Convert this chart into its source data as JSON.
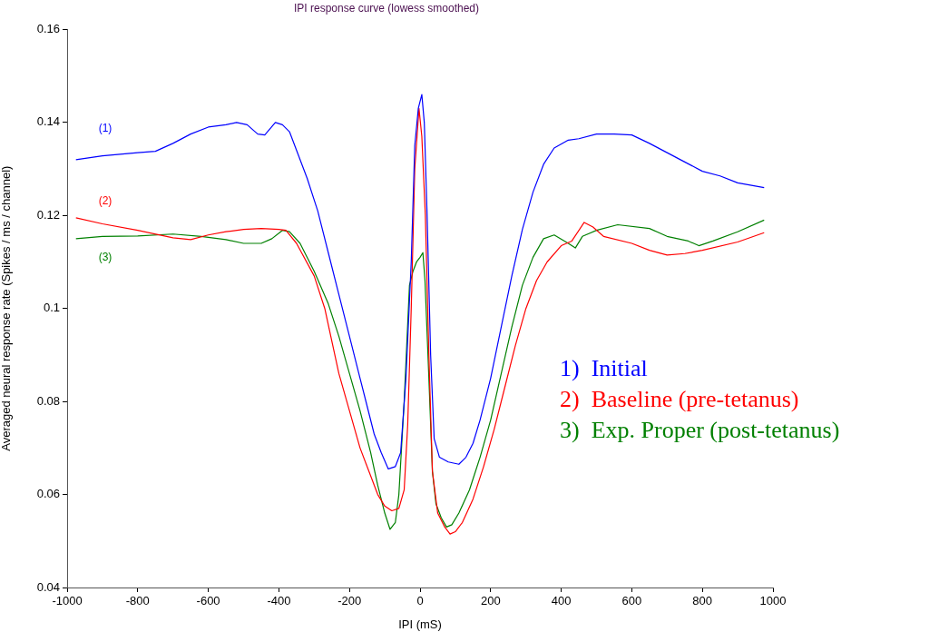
{
  "chart_data": {
    "type": "line",
    "title": "IPI response curve (lowess smoothed)",
    "xlabel": "IPI (mS)",
    "ylabel": "Averaged neural response rate (Spikes / ms / channel)",
    "xlim": [
      -1000,
      1000
    ],
    "xticks": [
      -1000,
      -800,
      -600,
      -400,
      -200,
      0,
      200,
      400,
      600,
      800,
      1000
    ],
    "ylim": [
      0.04,
      0.16
    ],
    "yticks": [
      0.04,
      0.06,
      0.08,
      0.1,
      0.12,
      0.14,
      0.16
    ],
    "legend": "right",
    "marker": "none",
    "line_style": "solid",
    "annotations": [
      "(1)",
      "(2)",
      "(3)"
    ],
    "series": [
      {
        "name": "1)  Initial",
        "color": "#0000ff",
        "x": [
          -975,
          -900,
          -800,
          -750,
          -700,
          -650,
          -600,
          -550,
          -520,
          -490,
          -460,
          -440,
          -410,
          -390,
          -370,
          -350,
          -320,
          -290,
          -260,
          -230,
          -200,
          -170,
          -150,
          -130,
          -110,
          -90,
          -70,
          -55,
          -40,
          -25,
          -15,
          -5,
          5,
          12,
          20,
          30,
          40,
          55,
          80,
          110,
          130,
          150,
          170,
          200,
          230,
          260,
          290,
          320,
          350,
          380,
          420,
          450,
          500,
          550,
          600,
          650,
          700,
          750,
          800,
          850,
          900,
          975
        ],
        "values": [
          0.132,
          0.1328,
          0.1335,
          0.1338,
          0.1355,
          0.1375,
          0.139,
          0.1395,
          0.14,
          0.1395,
          0.1375,
          0.1373,
          0.14,
          0.1395,
          0.138,
          0.134,
          0.128,
          0.121,
          0.112,
          0.103,
          0.094,
          0.085,
          0.079,
          0.073,
          0.069,
          0.0655,
          0.066,
          0.069,
          0.085,
          0.11,
          0.135,
          0.143,
          0.146,
          0.14,
          0.12,
          0.09,
          0.072,
          0.068,
          0.067,
          0.0665,
          0.068,
          0.071,
          0.076,
          0.085,
          0.096,
          0.107,
          0.117,
          0.125,
          0.131,
          0.1345,
          0.1362,
          0.1365,
          0.1375,
          0.1375,
          0.1373,
          0.1355,
          0.1335,
          0.1315,
          0.1295,
          0.1285,
          0.127,
          0.126
        ]
      },
      {
        "name": "2)  Baseline (pre-tetanus)",
        "color": "#ff0000",
        "x": [
          -975,
          -900,
          -800,
          -700,
          -650,
          -600,
          -550,
          -500,
          -450,
          -400,
          -380,
          -350,
          -300,
          -270,
          -250,
          -230,
          -200,
          -170,
          -140,
          -120,
          -100,
          -80,
          -60,
          -45,
          -35,
          -25,
          -15,
          -3,
          5,
          15,
          25,
          35,
          50,
          70,
          85,
          100,
          120,
          150,
          180,
          210,
          240,
          270,
          300,
          330,
          360,
          400,
          430,
          465,
          490,
          520,
          600,
          650,
          700,
          750,
          800,
          900,
          975
        ],
        "values": [
          0.1195,
          0.1182,
          0.1168,
          0.1152,
          0.1148,
          0.1158,
          0.1165,
          0.117,
          0.1172,
          0.117,
          0.1168,
          0.114,
          0.107,
          0.1,
          0.093,
          0.086,
          0.078,
          0.07,
          0.064,
          0.06,
          0.0575,
          0.0565,
          0.057,
          0.061,
          0.075,
          0.1,
          0.13,
          0.143,
          0.137,
          0.12,
          0.09,
          0.065,
          0.056,
          0.053,
          0.0515,
          0.052,
          0.054,
          0.059,
          0.066,
          0.074,
          0.083,
          0.092,
          0.1,
          0.106,
          0.11,
          0.1135,
          0.1145,
          0.1185,
          0.1175,
          0.1155,
          0.114,
          0.1125,
          0.1115,
          0.1118,
          0.1125,
          0.1143,
          0.1163
        ]
      },
      {
        "name": "3)  Exp. Proper (post-tetanus)",
        "color": "#008000",
        "x": [
          -975,
          -900,
          -800,
          -700,
          -620,
          -550,
          -500,
          -450,
          -420,
          -390,
          -370,
          -340,
          -300,
          -260,
          -230,
          -200,
          -170,
          -140,
          -120,
          -100,
          -85,
          -70,
          -60,
          -45,
          -30,
          -20,
          -10,
          0,
          8,
          14,
          25,
          35,
          45,
          60,
          75,
          90,
          110,
          140,
          170,
          200,
          230,
          260,
          290,
          320,
          350,
          380,
          420,
          440,
          460,
          500,
          560,
          650,
          700,
          760,
          790,
          830,
          900,
          975
        ],
        "values": [
          0.115,
          0.1155,
          0.1156,
          0.116,
          0.1155,
          0.1148,
          0.114,
          0.114,
          0.115,
          0.1168,
          0.1165,
          0.114,
          0.108,
          0.101,
          0.094,
          0.086,
          0.078,
          0.069,
          0.062,
          0.056,
          0.0525,
          0.054,
          0.06,
          0.08,
          0.105,
          0.108,
          0.11,
          0.111,
          0.112,
          0.106,
          0.085,
          0.065,
          0.058,
          0.055,
          0.053,
          0.0535,
          0.056,
          0.061,
          0.068,
          0.076,
          0.086,
          0.096,
          0.105,
          0.111,
          0.115,
          0.1158,
          0.114,
          0.113,
          0.1155,
          0.1168,
          0.118,
          0.1172,
          0.1155,
          0.1145,
          0.1135,
          0.1145,
          0.1165,
          0.119
        ]
      }
    ]
  }
}
